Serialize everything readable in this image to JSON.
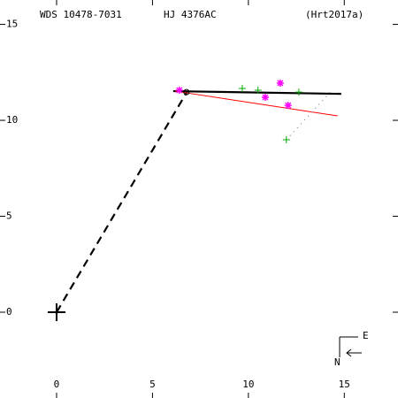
{
  "chart_data": {
    "type": "scatter",
    "titles": [
      "WDS 10478-7031",
      "HJ 4376AC",
      "(Hrt2017a)"
    ],
    "compass": {
      "east": "E",
      "north": "N"
    },
    "xlim": [
      -2.95,
      17.8
    ],
    "ylim": [
      -4.47,
      16.27
    ],
    "xticks": [
      0,
      5,
      10,
      15
    ],
    "yticks": [
      0,
      5,
      10,
      15
    ],
    "series": [
      {
        "kind": "line",
        "style": "dashed",
        "color": "#000000",
        "x": [
          0,
          6.82
        ],
        "y": [
          0,
          11.52
        ]
      },
      {
        "kind": "line",
        "style": "solid-thick",
        "color": "#000000",
        "x": [
          6.08,
          14.84
        ],
        "y": [
          11.52,
          11.38
        ]
      },
      {
        "kind": "line",
        "style": "solid",
        "color": "#ff0000",
        "x": [
          6.18,
          14.65
        ],
        "y": [
          11.52,
          10.23
        ]
      },
      {
        "kind": "line",
        "style": "dotted",
        "color": "#888888",
        "x": [
          11.98,
          14.3
        ],
        "y": [
          8.99,
          11.5
        ]
      },
      {
        "kind": "marker",
        "marker": "plus",
        "color": "#00aa00",
        "x": [
          9.68,
          10.5,
          12.63,
          11.98
        ],
        "y": [
          11.66,
          11.57,
          11.47,
          8.99
        ]
      },
      {
        "kind": "marker",
        "marker": "asterisk",
        "color": "#ff00ff",
        "x": [
          6.4,
          11.66,
          10.88,
          12.07
        ],
        "y": [
          11.57,
          11.94,
          11.2,
          10.78
        ]
      },
      {
        "kind": "marker",
        "marker": "circle",
        "color": "#000000",
        "x": [
          6.77
        ],
        "y": [
          11.47
        ]
      },
      {
        "kind": "marker",
        "marker": "big-plus",
        "color": "#000000",
        "x": [
          0
        ],
        "y": [
          0
        ]
      }
    ]
  }
}
